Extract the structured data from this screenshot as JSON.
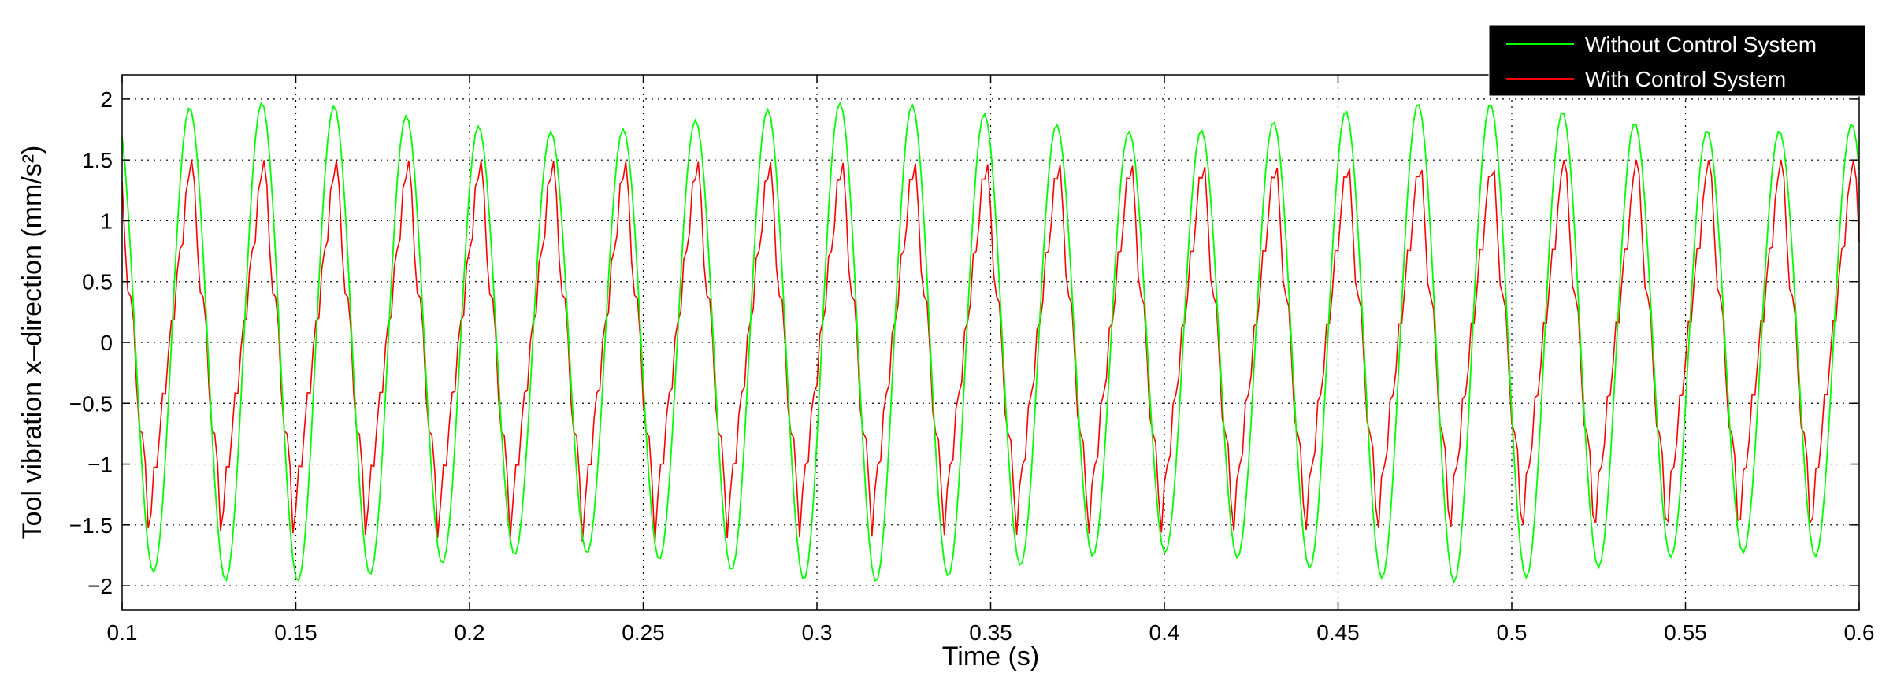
{
  "chart_data": {
    "type": "line",
    "title": "",
    "xlabel": "Time (s)",
    "ylabel": "Tool vibration x–direction (mm/s²)",
    "xlim": [
      0.1,
      0.6
    ],
    "ylim": [
      -2.2,
      2.2
    ],
    "xticks": [
      0.1,
      0.15,
      0.2,
      0.25,
      0.3,
      0.35,
      0.4,
      0.45,
      0.5,
      0.55,
      0.6
    ],
    "xtick_labels": [
      "0.1",
      "0.15",
      "0.2",
      "0.25",
      "0.3",
      "0.35",
      "0.4",
      "0.45",
      "0.5",
      "0.55",
      "0.6"
    ],
    "yticks": [
      2,
      1.5,
      1,
      0.5,
      0,
      -0.5,
      -1,
      -1.5,
      -2
    ],
    "ytick_labels": [
      "2",
      "1.5",
      "1",
      "0.5",
      "0",
      "−0.5",
      "−1",
      "−1.5",
      "−2"
    ],
    "grid": true,
    "legend_position": "top-right",
    "period_s": 0.0208,
    "series": [
      {
        "name": "Without Control System",
        "color": "#00ff00",
        "amplitude": 1.85,
        "phase_peak_s": 0.1194,
        "description": "sinusoid"
      },
      {
        "name": "With Control System",
        "color": "#ff0000",
        "amplitude_peak": 1.5,
        "amplitude_trough": -1.5,
        "phase_peak_s": 0.1198,
        "description": "sawtooth-like"
      }
    ]
  }
}
